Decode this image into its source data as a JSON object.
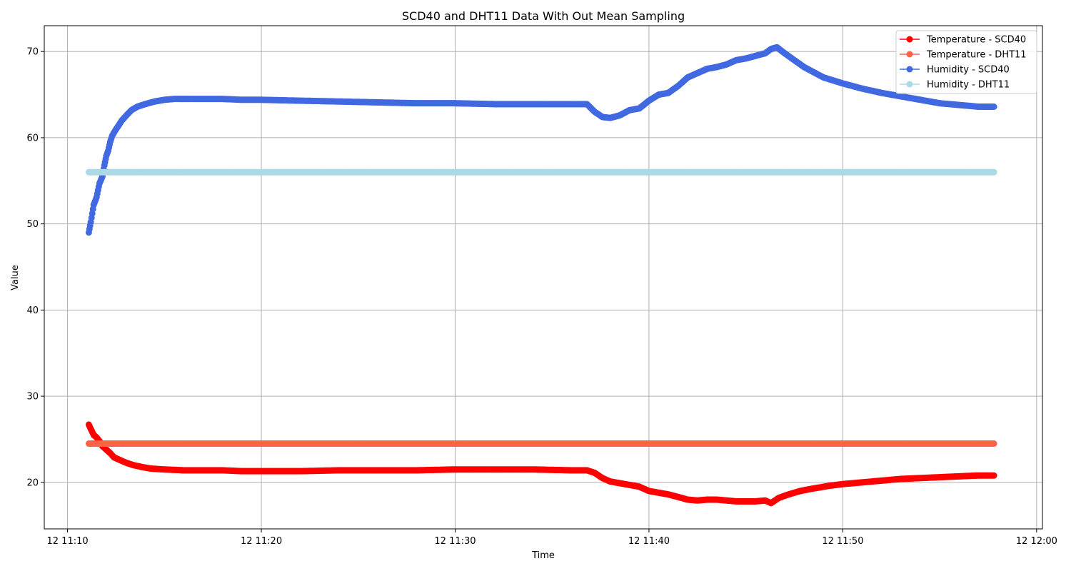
{
  "chart_data": {
    "type": "line",
    "title": "SCD40 and DHT11 Data With Out Mean Sampling",
    "xlabel": "Time",
    "ylabel": "Value",
    "x_unit": "minute of hour 11 (day 12)",
    "xlim": [
      8.8,
      60.3
    ],
    "ylim": [
      14.6,
      73.0
    ],
    "x_ticks": [
      {
        "value": 10,
        "label": "12 11:10"
      },
      {
        "value": 20,
        "label": "12 11:20"
      },
      {
        "value": 30,
        "label": "12 11:30"
      },
      {
        "value": 40,
        "label": "12 11:40"
      },
      {
        "value": 50,
        "label": "12 11:50"
      },
      {
        "value": 60,
        "label": "12 12:00"
      }
    ],
    "y_ticks": [
      20,
      30,
      40,
      50,
      60,
      70
    ],
    "grid": true,
    "legend_position": "top-right",
    "series": [
      {
        "name": "Temperature - SCD40",
        "color": "#ff0000",
        "x": [
          11.1,
          11.2,
          11.35,
          11.5,
          11.65,
          11.8,
          12.0,
          12.2,
          12.4,
          12.7,
          13.0,
          13.4,
          13.8,
          14.3,
          15.0,
          16.0,
          17.0,
          18.0,
          19.0,
          20.0,
          22.0,
          24.0,
          26.0,
          28.0,
          30.0,
          32.0,
          34.0,
          36.0,
          36.8,
          37.2,
          37.6,
          38.0,
          38.5,
          39.0,
          39.5,
          40.0,
          40.5,
          41.0,
          41.5,
          42.0,
          42.5,
          43.0,
          43.5,
          44.0,
          44.5,
          45.0,
          45.5,
          46.0,
          46.3,
          46.7,
          47.2,
          47.8,
          48.5,
          49.3,
          50.0,
          51.0,
          52.0,
          53.0,
          54.0,
          55.0,
          56.0,
          57.0,
          57.8
        ],
        "y": [
          26.7,
          26.2,
          25.5,
          25.2,
          24.8,
          24.2,
          23.8,
          23.4,
          22.9,
          22.6,
          22.3,
          22.0,
          21.8,
          21.6,
          21.5,
          21.4,
          21.4,
          21.4,
          21.3,
          21.3,
          21.3,
          21.4,
          21.4,
          21.4,
          21.5,
          21.5,
          21.5,
          21.4,
          21.4,
          21.1,
          20.5,
          20.1,
          19.9,
          19.7,
          19.5,
          19.0,
          18.8,
          18.6,
          18.3,
          18.0,
          17.9,
          18.0,
          18.0,
          17.9,
          17.8,
          17.8,
          17.8,
          17.9,
          17.6,
          18.2,
          18.6,
          19.0,
          19.3,
          19.6,
          19.8,
          20.0,
          20.2,
          20.4,
          20.5,
          20.6,
          20.7,
          20.8,
          20.8
        ]
      },
      {
        "name": "Temperature - DHT11",
        "color": "#ff6347",
        "x": [
          11.1,
          57.8
        ],
        "y": [
          24.5,
          24.5
        ]
      },
      {
        "name": "Humidity - SCD40",
        "color": "#4169e1",
        "x": [
          11.1,
          11.2,
          11.35,
          11.5,
          11.65,
          11.8,
          11.9,
          12.0,
          12.1,
          12.2,
          12.3,
          12.45,
          12.6,
          12.8,
          13.0,
          13.3,
          13.6,
          14.0,
          14.5,
          15.0,
          15.5,
          16.0,
          17.0,
          18.0,
          19.0,
          20.0,
          22.0,
          24.0,
          26.0,
          28.0,
          30.0,
          32.0,
          34.0,
          36.0,
          36.8,
          37.2,
          37.6,
          38.0,
          38.5,
          39.0,
          39.5,
          40.0,
          40.5,
          41.0,
          41.5,
          42.0,
          42.5,
          43.0,
          43.5,
          44.0,
          44.5,
          45.0,
          45.5,
          46.0,
          46.3,
          46.6,
          47.0,
          47.5,
          48.0,
          49.0,
          50.0,
          51.0,
          52.0,
          53.0,
          54.0,
          55.0,
          56.0,
          57.0,
          57.8
        ],
        "y": [
          49.0,
          50.2,
          52.2,
          53.1,
          54.7,
          55.5,
          56.8,
          57.9,
          58.5,
          59.5,
          60.2,
          60.8,
          61.3,
          62.0,
          62.5,
          63.2,
          63.6,
          63.9,
          64.2,
          64.4,
          64.5,
          64.5,
          64.5,
          64.5,
          64.4,
          64.4,
          64.3,
          64.2,
          64.1,
          64.0,
          64.0,
          63.9,
          63.9,
          63.9,
          63.9,
          63.0,
          62.4,
          62.3,
          62.6,
          63.2,
          63.4,
          64.3,
          65.0,
          65.2,
          66.0,
          67.0,
          67.5,
          68.0,
          68.2,
          68.5,
          69.0,
          69.2,
          69.5,
          69.8,
          70.3,
          70.5,
          69.8,
          69.0,
          68.2,
          67.0,
          66.3,
          65.7,
          65.2,
          64.8,
          64.4,
          64.0,
          63.8,
          63.6,
          63.6
        ]
      },
      {
        "name": "Humidity - DHT11",
        "color": "#add8e6",
        "x": [
          11.1,
          57.8
        ],
        "y": [
          56.0,
          56.0
        ]
      }
    ]
  }
}
